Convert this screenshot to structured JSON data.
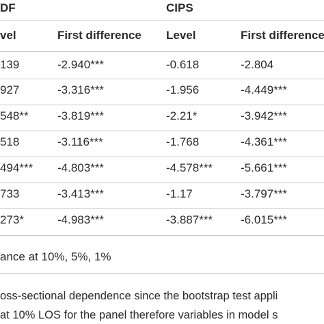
{
  "table": {
    "group_headers": {
      "adf": "DF",
      "cips": "CIPS"
    },
    "column_headers": [
      "vel",
      "First difference",
      "Level",
      "First difference"
    ],
    "rows": [
      [
        "139",
        "-2.940***",
        "-0.618",
        "-2.804"
      ],
      [
        "927",
        "-3.316***",
        "-1.956",
        "-4.449***"
      ],
      [
        "548**",
        "-3.819***",
        "-2.21*",
        "-3.942***"
      ],
      [
        "518",
        "-3.116***",
        "-1.768",
        "-4.361***"
      ],
      [
        "494***",
        "-4.803***",
        "-4.578***",
        "-5.661***"
      ],
      [
        "733",
        "-3.413***",
        "-1.17",
        "-3.797***"
      ],
      [
        "273*",
        "-4.983***",
        "-3.887***",
        "-6.015***"
      ]
    ],
    "footnote": "ance at 10%, 5%, 1%"
  },
  "caption": {
    "line1": "oss-sectional dependence since the bootstrap test appli",
    "line2": "at 10% LOS for the panel therefore variables in model s"
  }
}
